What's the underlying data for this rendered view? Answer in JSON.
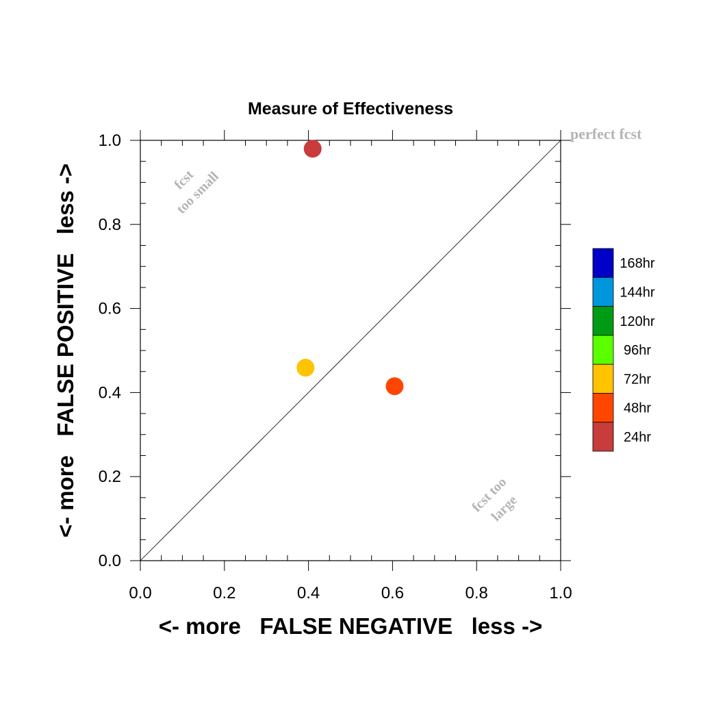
{
  "chart_data": {
    "type": "scatter",
    "title": "Measure of Effectiveness",
    "xlabel": "<- more   FALSE NEGATIVE   less ->",
    "ylabel": "<- more   FALSE POSITIVE   less ->",
    "xlim": [
      0.0,
      1.0
    ],
    "ylim": [
      0.0,
      1.0
    ],
    "x_ticks": [
      "0.0",
      "0.2",
      "0.4",
      "0.6",
      "0.8",
      "1.0"
    ],
    "y_ticks": [
      "0.0",
      "0.2",
      "0.4",
      "0.6",
      "0.8",
      "1.0"
    ],
    "grid": false,
    "diagonal_line": true,
    "annotations": {
      "perfect": "perfect fcst",
      "too_small_1": "fcst",
      "too_small_2": "too small",
      "too_large_1": "fcst too",
      "too_large_2": "large"
    },
    "annotation_color": "#b4b4b4",
    "points": [
      {
        "x": 0.41,
        "y": 0.98,
        "lead": "24hr"
      },
      {
        "x": 0.605,
        "y": 0.415,
        "lead": "48hr"
      },
      {
        "x": 0.393,
        "y": 0.459,
        "lead": "72hr"
      }
    ],
    "legend": {
      "placement": "right",
      "entries": [
        {
          "label": "168hr",
          "color": "#0000c8"
        },
        {
          "label": "144hr",
          "color": "#0096dc"
        },
        {
          "label": "120hr",
          "color": "#009b14"
        },
        {
          "label": "96hr",
          "color": "#5aff00"
        },
        {
          "label": "72hr",
          "color": "#ffc300"
        },
        {
          "label": "48hr",
          "color": "#ff4600"
        },
        {
          "label": "24hr",
          "color": "#c83c3c"
        }
      ]
    }
  }
}
